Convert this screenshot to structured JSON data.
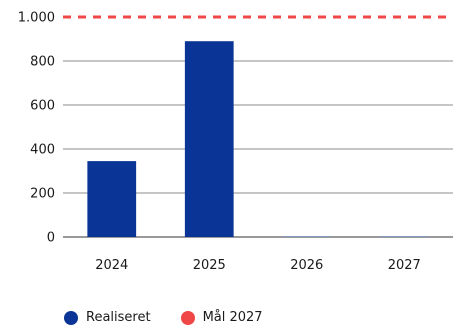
{
  "chart_data": {
    "type": "bar",
    "categories": [
      "2024",
      "2025",
      "2026",
      "2027"
    ],
    "series": [
      {
        "name": "Realiseret",
        "color": "#0a3596",
        "values": [
          345,
          890,
          2,
          2
        ]
      }
    ],
    "target": {
      "name": "Mål 2027",
      "value": 1000,
      "color": "#f04747",
      "style": "dashed"
    },
    "ylim": [
      0,
      1000
    ],
    "yticks": [
      0,
      200,
      400,
      600,
      800,
      1000
    ],
    "ytick_labels": [
      "0",
      "200",
      "400",
      "600",
      "800",
      "1.000"
    ],
    "grid": true,
    "legend_position": "bottom-left"
  }
}
